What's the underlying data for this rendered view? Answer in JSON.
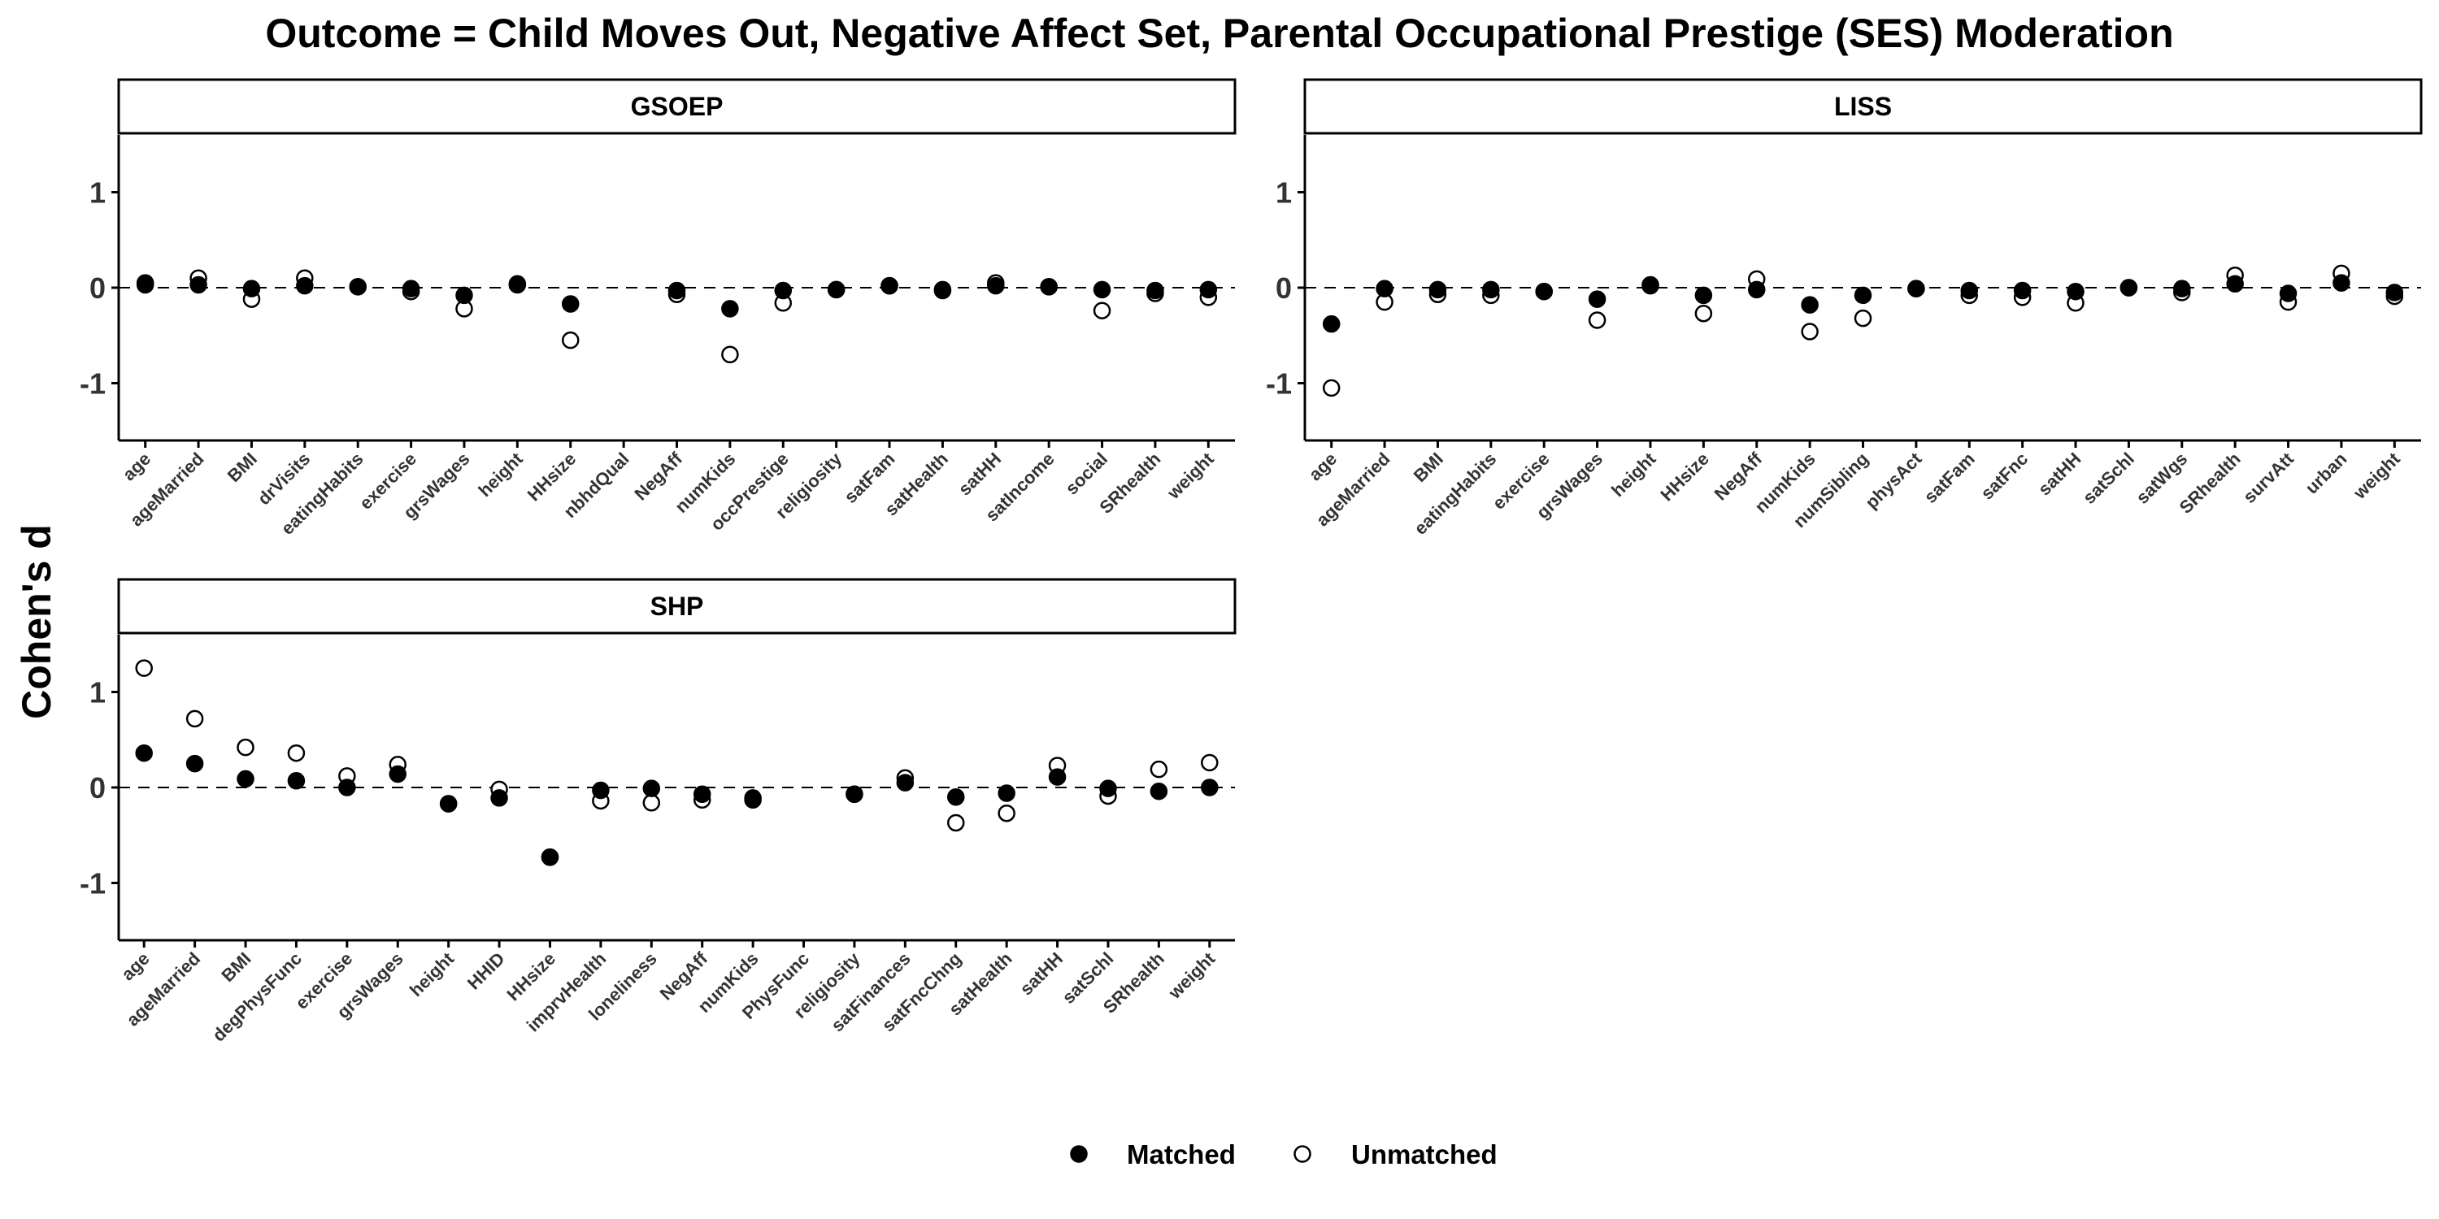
{
  "chart_data": {
    "type": "scatter",
    "title": "Outcome = Child Moves Out, Negative Affect Set, Parental Occupational Prestige (SES) Moderation",
    "ylabel": "Cohen's d",
    "xlabel": "",
    "ylim": [
      -1.6,
      1.6
    ],
    "yticks": [
      -1,
      0,
      1
    ],
    "reference_line": 0,
    "grid": false,
    "legend": {
      "placement": "bottom",
      "entries": [
        {
          "name": "Matched",
          "marker": "filled-circle"
        },
        {
          "name": "Unmatched",
          "marker": "open-circle"
        }
      ]
    },
    "facets": [
      {
        "name": "GSOEP",
        "categories": [
          "age",
          "ageMarried",
          "BMI",
          "drVisits",
          "eatingHabits",
          "exercise",
          "grsWages",
          "height",
          "HHsize",
          "nbhdQual",
          "NegAff",
          "numKids",
          "occPrestige",
          "religiosity",
          "satFam",
          "satHealth",
          "satHH",
          "satIncome",
          "social",
          "SRhealth",
          "weight"
        ],
        "series": [
          {
            "name": "Matched",
            "values": [
              0.03,
              0.03,
              -0.01,
              0.02,
              0.01,
              -0.01,
              -0.08,
              0.03,
              -0.17,
              null,
              -0.03,
              -0.22,
              -0.03,
              -0.02,
              0.02,
              -0.02,
              0.02,
              0.01,
              -0.02,
              -0.03,
              -0.02
            ]
          },
          {
            "name": "Unmatched",
            "values": [
              0.05,
              0.1,
              -0.12,
              0.1,
              0.01,
              -0.04,
              -0.22,
              0.04,
              -0.55,
              null,
              -0.07,
              -0.7,
              -0.16,
              -0.02,
              0.02,
              -0.03,
              0.05,
              0.01,
              -0.24,
              -0.06,
              -0.1
            ]
          }
        ]
      },
      {
        "name": "LISS",
        "categories": [
          "age",
          "ageMarried",
          "BMI",
          "eatingHabits",
          "exercise",
          "grsWages",
          "height",
          "HHsize",
          "NegAff",
          "numKids",
          "numSibling",
          "physAct",
          "satFam",
          "satFnc",
          "satHH",
          "satSchl",
          "satWgs",
          "SRhealth",
          "survAtt",
          "urban",
          "weight"
        ],
        "series": [
          {
            "name": "Matched",
            "values": [
              -0.38,
              -0.01,
              -0.02,
              -0.02,
              -0.04,
              -0.12,
              0.02,
              -0.08,
              -0.02,
              -0.18,
              -0.08,
              -0.01,
              -0.03,
              -0.03,
              -0.04,
              0.0,
              -0.01,
              0.04,
              -0.06,
              0.05,
              -0.05
            ]
          },
          {
            "name": "Unmatched",
            "values": [
              -1.05,
              -0.15,
              -0.07,
              -0.08,
              -0.04,
              -0.34,
              0.03,
              -0.27,
              0.09,
              -0.46,
              -0.32,
              -0.01,
              -0.08,
              -0.1,
              -0.16,
              0.0,
              -0.05,
              0.13,
              -0.15,
              0.15,
              -0.09
            ]
          }
        ]
      },
      {
        "name": "SHP",
        "categories": [
          "age",
          "ageMarried",
          "BMI",
          "degPhysFunc",
          "exercise",
          "grsWages",
          "height",
          "HHID",
          "HHsize",
          "imprvHealth",
          "loneliness",
          "NegAff",
          "numKids",
          "PhysFunc",
          "religiosity",
          "satFinances",
          "satFncChng",
          "satHealth",
          "satHH",
          "satSchl",
          "SRhealth",
          "weight"
        ],
        "series": [
          {
            "name": "Matched",
            "values": [
              0.36,
              0.25,
              0.09,
              0.07,
              0.0,
              0.14,
              -0.17,
              -0.11,
              -0.73,
              -0.03,
              -0.01,
              -0.07,
              -0.11,
              null,
              -0.07,
              0.05,
              -0.1,
              -0.06,
              0.11,
              -0.01,
              -0.04,
              0.0
            ]
          },
          {
            "name": "Unmatched",
            "values": [
              1.25,
              0.72,
              0.42,
              0.36,
              0.12,
              0.24,
              -0.17,
              -0.02,
              -0.73,
              -0.14,
              -0.16,
              -0.13,
              -0.13,
              null,
              -0.07,
              0.1,
              -0.37,
              -0.27,
              0.23,
              -0.09,
              0.19,
              0.26
            ]
          }
        ]
      }
    ]
  },
  "colors": {
    "matched_fill": "#000000",
    "unmatched_fill": "#ffffff",
    "marker_stroke": "#000000",
    "axis": "#000000",
    "reference_line": "#000000"
  }
}
